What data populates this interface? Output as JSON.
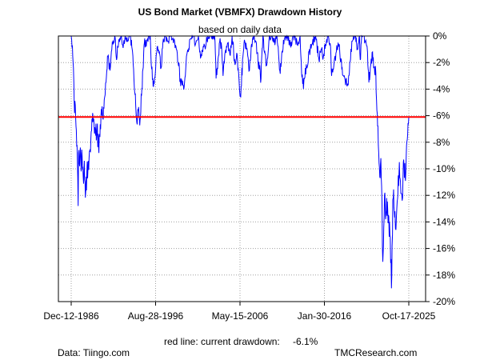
{
  "chart_data": {
    "type": "line",
    "title": "US Bond Market (VBMFX) Drawdown History",
    "subtitle": "based on daily data",
    "xlabel": "",
    "ylabel": "",
    "x_ticks": [
      "Dec-12-1986",
      "Aug-28-1996",
      "May-15-2006",
      "Jan-30-2016",
      "Oct-17-2025"
    ],
    "x_range": [
      "1986-12-12",
      "2025-10-17"
    ],
    "y_ticks": [
      0,
      -2,
      -4,
      -6,
      -8,
      -10,
      -12,
      -14,
      -16,
      -18,
      -20
    ],
    "y_tick_labels": [
      "0%",
      "-2%",
      "-4%",
      "-6%",
      "-8%",
      "-10%",
      "-12%",
      "-14%",
      "-16%",
      "-18%",
      "-20%"
    ],
    "ylim": [
      -20,
      0
    ],
    "grid": true,
    "series": [
      {
        "color": "#0000ff",
        "points": [
          [
            "1986-12-12",
            0
          ],
          [
            "1987-01-01",
            -0.3
          ],
          [
            "1987-02-15",
            -1.5
          ],
          [
            "1987-04-01",
            -3.5
          ],
          [
            "1987-05-01",
            -5.8
          ],
          [
            "1987-06-01",
            -5.2
          ],
          [
            "1987-07-01",
            -6.8
          ],
          [
            "1987-08-15",
            -8.2
          ],
          [
            "1987-10-01",
            -12.8
          ],
          [
            "1987-10-19",
            -8.8
          ],
          [
            "1987-11-15",
            -9.6
          ],
          [
            "1987-12-31",
            -8.4
          ],
          [
            "1988-02-01",
            -10.2
          ],
          [
            "1988-03-15",
            -9.1
          ],
          [
            "1988-05-01",
            -10.6
          ],
          [
            "1988-06-15",
            -9.4
          ],
          [
            "1988-07-15",
            -11.0
          ],
          [
            "1988-08-15",
            -11.7
          ],
          [
            "1988-10-01",
            -10.2
          ],
          [
            "1988-12-01",
            -9.4
          ],
          [
            "1989-02-01",
            -8.6
          ],
          [
            "1989-04-01",
            -7.2
          ],
          [
            "1989-06-01",
            -5.8
          ],
          [
            "1989-08-01",
            -6.7
          ],
          [
            "1989-10-01",
            -7.5
          ],
          [
            "1989-12-01",
            -7.0
          ],
          [
            "1990-02-01",
            -8.2
          ],
          [
            "1990-04-01",
            -7.6
          ],
          [
            "1990-06-01",
            -5.5
          ],
          [
            "1990-08-01",
            -6.2
          ],
          [
            "1990-10-01",
            -4.8
          ],
          [
            "1990-12-15",
            -3.5
          ],
          [
            "1991-03-01",
            -1.5
          ],
          [
            "1991-06-01",
            -2.6
          ],
          [
            "1991-09-01",
            -0.5
          ],
          [
            "1991-12-31",
            -0.1
          ],
          [
            "1992-03-01",
            -1.8
          ],
          [
            "1992-06-01",
            -0.3
          ],
          [
            "1992-09-01",
            0
          ],
          [
            "1992-12-01",
            -0.9
          ],
          [
            "1993-03-01",
            0
          ],
          [
            "1993-06-01",
            -0.4
          ],
          [
            "1993-09-15",
            0
          ],
          [
            "1993-12-01",
            -0.8
          ],
          [
            "1994-02-15",
            -2.5
          ],
          [
            "1994-04-01",
            -4.2
          ],
          [
            "1994-05-15",
            -5.2
          ],
          [
            "1994-07-01",
            -6.5
          ],
          [
            "1994-08-15",
            -5.5
          ],
          [
            "1994-10-01",
            -6.1
          ],
          [
            "1994-11-15",
            -6.3
          ],
          [
            "1995-01-15",
            -4.5
          ],
          [
            "1995-03-15",
            -2.5
          ],
          [
            "1995-05-15",
            -0.5
          ],
          [
            "1995-08-01",
            -0.8
          ],
          [
            "1995-11-01",
            0
          ],
          [
            "1996-01-15",
            0
          ],
          [
            "1996-03-01",
            -2.2
          ],
          [
            "1996-05-01",
            -3.2
          ],
          [
            "1996-07-01",
            -3.6
          ],
          [
            "1996-09-01",
            -2.4
          ],
          [
            "1996-11-01",
            -0.8
          ],
          [
            "1997-02-01",
            -1.2
          ],
          [
            "1997-04-15",
            -2.4
          ],
          [
            "1997-07-01",
            -0.5
          ],
          [
            "1997-10-01",
            0
          ],
          [
            "1998-02-01",
            -0.4
          ],
          [
            "1998-06-01",
            0
          ],
          [
            "1998-10-01",
            -0.3
          ],
          [
            "1999-01-01",
            -0.8
          ],
          [
            "1999-04-01",
            -2.0
          ],
          [
            "1999-07-01",
            -3.2
          ],
          [
            "1999-09-15",
            -3.7
          ],
          [
            "1999-12-31",
            -3.4
          ],
          [
            "2000-03-01",
            -2.0
          ],
          [
            "2000-06-01",
            -1.2
          ],
          [
            "2000-09-01",
            -0.2
          ],
          [
            "2001-01-01",
            0
          ],
          [
            "2001-04-01",
            -0.6
          ],
          [
            "2001-08-01",
            0
          ],
          [
            "2001-11-15",
            -1.6
          ],
          [
            "2002-02-01",
            -1.2
          ],
          [
            "2002-05-01",
            -0.8
          ],
          [
            "2002-09-01",
            0
          ],
          [
            "2003-03-01",
            0
          ],
          [
            "2003-06-15",
            0
          ],
          [
            "2003-08-15",
            -3.2
          ],
          [
            "2003-10-01",
            -2.4
          ],
          [
            "2004-01-15",
            -0.4
          ],
          [
            "2004-04-01",
            -0.8
          ],
          [
            "2004-06-01",
            -3.0
          ],
          [
            "2004-09-01",
            -1.2
          ],
          [
            "2004-12-01",
            -0.6
          ],
          [
            "2005-03-15",
            -1.4
          ],
          [
            "2005-06-15",
            0
          ],
          [
            "2005-10-01",
            -1.8
          ],
          [
            "2006-01-15",
            -1.4
          ],
          [
            "2006-04-01",
            -3.2
          ],
          [
            "2006-05-15",
            -4.5
          ],
          [
            "2006-07-01",
            -3.8
          ],
          [
            "2006-09-15",
            -1.6
          ],
          [
            "2006-12-01",
            -0.4
          ],
          [
            "2007-03-01",
            -0.9
          ],
          [
            "2007-06-15",
            -2.6
          ],
          [
            "2007-09-15",
            -0.6
          ],
          [
            "2008-01-01",
            0
          ],
          [
            "2008-03-15",
            -0.4
          ],
          [
            "2008-06-15",
            -2.0
          ],
          [
            "2008-10-15",
            -3.2
          ],
          [
            "2008-12-31",
            0
          ],
          [
            "2009-03-01",
            -1.2
          ],
          [
            "2009-06-15",
            -2.2
          ],
          [
            "2009-09-15",
            -0.3
          ],
          [
            "2010-01-15",
            0
          ],
          [
            "2010-04-01",
            -0.5
          ],
          [
            "2010-08-15",
            0
          ],
          [
            "2010-12-15",
            -2.6
          ],
          [
            "2011-02-15",
            -2.0
          ],
          [
            "2011-05-15",
            -0.3
          ],
          [
            "2011-09-15",
            0
          ],
          [
            "2012-03-15",
            -0.8
          ],
          [
            "2012-07-15",
            0
          ],
          [
            "2012-12-15",
            -0.6
          ],
          [
            "2013-04-15",
            0
          ],
          [
            "2013-06-15",
            -2.8
          ],
          [
            "2013-09-01",
            -4.0
          ],
          [
            "2013-10-15",
            -3.2
          ],
          [
            "2014-01-15",
            -2.4
          ],
          [
            "2014-06-15",
            -1.0
          ],
          [
            "2014-09-15",
            -0.6
          ],
          [
            "2015-01-30",
            0
          ],
          [
            "2015-06-15",
            -1.8
          ],
          [
            "2015-09-15",
            -1.0
          ],
          [
            "2015-12-15",
            -1.6
          ],
          [
            "2016-03-15",
            -0.6
          ],
          [
            "2016-07-15",
            0
          ],
          [
            "2016-10-15",
            -0.8
          ],
          [
            "2016-11-30",
            -3.0
          ],
          [
            "2017-02-15",
            -2.5
          ],
          [
            "2017-06-15",
            -1.2
          ],
          [
            "2017-09-15",
            -0.6
          ],
          [
            "2018-02-15",
            -2.4
          ],
          [
            "2018-05-15",
            -3.0
          ],
          [
            "2018-10-15",
            -3.6
          ],
          [
            "2018-12-31",
            -2.0
          ],
          [
            "2019-04-15",
            -0.4
          ],
          [
            "2019-08-31",
            0
          ],
          [
            "2019-11-15",
            -1.0
          ],
          [
            "2020-02-15",
            0
          ],
          [
            "2020-03-15",
            -1.8
          ],
          [
            "2020-05-15",
            0
          ],
          [
            "2020-08-15",
            0
          ],
          [
            "2020-10-15",
            -0.4
          ],
          [
            "2021-01-15",
            -1.2
          ],
          [
            "2021-03-15",
            -3.5
          ],
          [
            "2021-05-15",
            -2.4
          ],
          [
            "2021-08-15",
            -1.2
          ],
          [
            "2021-10-15",
            -2.4
          ],
          [
            "2021-12-31",
            -2.8
          ],
          [
            "2022-02-15",
            -5.6
          ],
          [
            "2022-03-15",
            -6.8
          ],
          [
            "2022-05-01",
            -8.8
          ],
          [
            "2022-06-15",
            -10.6
          ],
          [
            "2022-08-01",
            -9.2
          ],
          [
            "2022-09-15",
            -12.5
          ],
          [
            "2022-10-21",
            -17.0
          ],
          [
            "2022-11-15",
            -15.8
          ],
          [
            "2022-12-15",
            -13.6
          ],
          [
            "2023-01-15",
            -11.8
          ],
          [
            "2023-02-15",
            -13.8
          ],
          [
            "2023-04-01",
            -12.2
          ],
          [
            "2023-05-15",
            -13.0
          ],
          [
            "2023-07-01",
            -13.6
          ],
          [
            "2023-08-15",
            -15.0
          ],
          [
            "2023-09-30",
            -16.8
          ],
          [
            "2023-10-20",
            -19.0
          ],
          [
            "2023-11-15",
            -15.8
          ],
          [
            "2023-12-31",
            -12.2
          ],
          [
            "2024-02-01",
            -12.9
          ],
          [
            "2024-03-15",
            -13.2
          ],
          [
            "2024-04-25",
            -14.6
          ],
          [
            "2024-06-01",
            -13.0
          ],
          [
            "2024-07-15",
            -12.0
          ],
          [
            "2024-09-15",
            -9.5
          ],
          [
            "2024-11-01",
            -11.0
          ],
          [
            "2025-01-10",
            -12.4
          ],
          [
            "2025-02-15",
            -10.8
          ],
          [
            "2025-04-01",
            -9.8
          ],
          [
            "2025-05-15",
            -10.6
          ],
          [
            "2025-06-30",
            -9.0
          ],
          [
            "2025-08-15",
            -7.8
          ],
          [
            "2025-09-15",
            -6.6
          ],
          [
            "2025-10-17",
            -6.1
          ]
        ]
      }
    ],
    "reference_line": {
      "value": -6.1,
      "color": "#ff0000"
    },
    "note": {
      "label": "red line: current drawdown:",
      "value": "-6.1%"
    },
    "source": "Data: Tiingo.com",
    "brand": "TMCResearch.com"
  }
}
